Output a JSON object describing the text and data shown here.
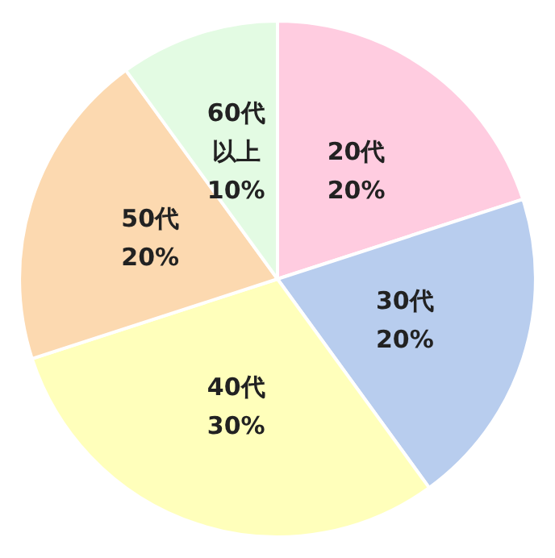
{
  "chart_data": {
    "type": "pie",
    "categories": [
      "20代",
      "30代",
      "40代",
      "50代",
      "60代以上"
    ],
    "values": [
      20,
      20,
      30,
      20,
      10
    ],
    "colors": [
      "#ffcce0",
      "#b8cdee",
      "#ffffbb",
      "#fcd9b0",
      "#e3fbe3"
    ],
    "value_labels": [
      "20%",
      "20%",
      "30%",
      "20%",
      "10%"
    ]
  }
}
